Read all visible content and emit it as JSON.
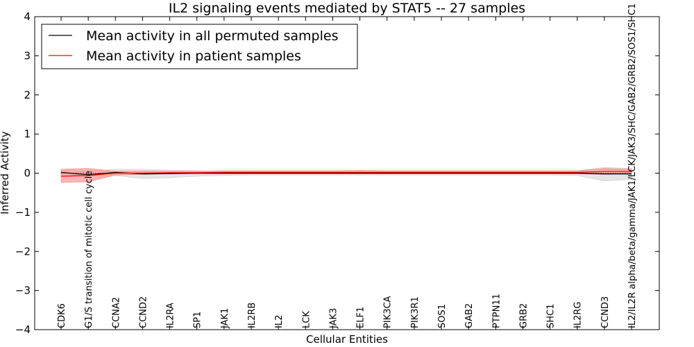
{
  "chart_data": {
    "type": "line",
    "title": "IL2 signaling events mediated by STAT5 -- 27 samples",
    "xlabel": "Cellular Entities",
    "ylabel": "Inferred Activity",
    "ylim": [
      -4,
      4
    ],
    "yticks": [
      "−4",
      "−3",
      "−2",
      "−1",
      "0",
      "1",
      "2",
      "3",
      "4"
    ],
    "ytick_values": [
      -4,
      -3,
      -2,
      -1,
      0,
      1,
      2,
      3,
      4
    ],
    "legend_position": "top-left",
    "grid": false,
    "categories": [
      "CDK6",
      "G1/S transition of mitotic cell cycle",
      "CCNA2",
      "CCND2",
      "IL2RA",
      "SP1",
      "JAK1",
      "IL2RB",
      "IL2",
      "LCK",
      "JAK3",
      "ELF1",
      "PIK3CA",
      "PIK3R1",
      "SOS1",
      "GAB2",
      "PTPN11",
      "GRB2",
      "SHC1",
      "IL2RG",
      "CCND3",
      "IL2/IL2R alpha/beta/gamma/JAK1/LCK/JAK3/SHC/GAB2/GRB2/SOS1/SHC1"
    ],
    "series": [
      {
        "name": "Mean activity in all permuted samples",
        "color": "#000000",
        "band_color": "#d0d0d0",
        "values": [
          0.02,
          -0.04,
          0.02,
          -0.02,
          -0.01,
          0.0,
          0.0,
          0.0,
          0.0,
          0.0,
          0.0,
          0.0,
          0.0,
          0.0,
          0.0,
          0.0,
          0.0,
          0.0,
          0.0,
          0.0,
          -0.02,
          -0.02
        ],
        "lower": [
          -0.05,
          -0.08,
          -0.06,
          -0.14,
          -0.12,
          -0.08,
          -0.06,
          -0.05,
          -0.05,
          -0.05,
          -0.05,
          -0.05,
          -0.05,
          -0.05,
          -0.05,
          -0.05,
          -0.05,
          -0.05,
          -0.05,
          -0.06,
          -0.2,
          -0.16
        ],
        "upper": [
          0.08,
          0.05,
          0.1,
          0.1,
          0.08,
          0.06,
          0.05,
          0.05,
          0.05,
          0.05,
          0.05,
          0.05,
          0.05,
          0.05,
          0.05,
          0.05,
          0.05,
          0.05,
          0.05,
          0.06,
          0.15,
          0.12
        ]
      },
      {
        "name": "Mean activity in patient samples",
        "color": "#ff0000",
        "band_color": "#ff8080",
        "values": [
          -0.08,
          -0.06,
          0.0,
          0.0,
          0.01,
          0.01,
          0.02,
          0.02,
          0.02,
          0.02,
          0.02,
          0.02,
          0.02,
          0.02,
          0.02,
          0.02,
          0.02,
          0.02,
          0.02,
          0.02,
          0.04,
          0.04
        ],
        "lower": [
          -0.24,
          -0.22,
          -0.05,
          -0.03,
          -0.02,
          -0.02,
          -0.02,
          -0.02,
          -0.02,
          -0.02,
          -0.02,
          -0.02,
          -0.02,
          -0.02,
          -0.02,
          -0.02,
          -0.02,
          -0.02,
          -0.02,
          -0.02,
          -0.03,
          -0.01
        ],
        "upper": [
          0.1,
          0.12,
          0.05,
          0.05,
          0.05,
          0.05,
          0.06,
          0.06,
          0.06,
          0.06,
          0.06,
          0.07,
          0.06,
          0.06,
          0.06,
          0.06,
          0.06,
          0.06,
          0.06,
          0.06,
          0.12,
          0.1
        ]
      }
    ]
  }
}
